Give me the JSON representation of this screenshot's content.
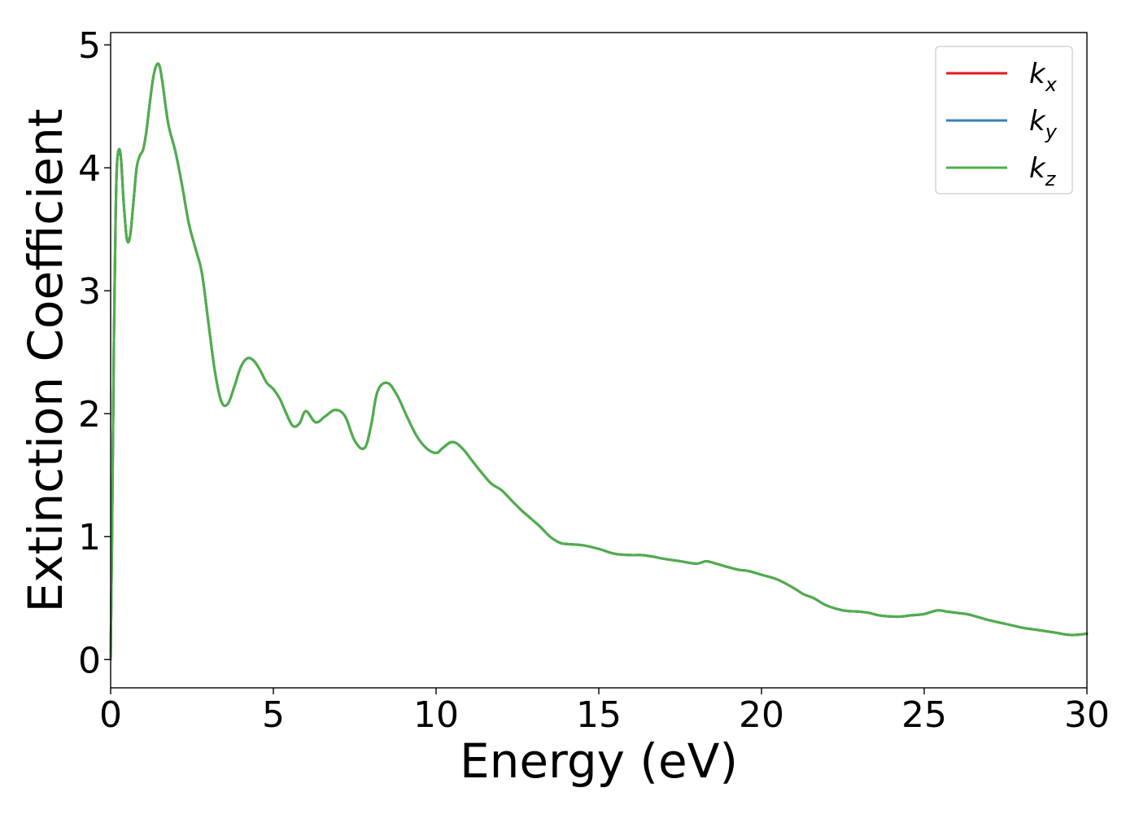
{
  "chart_data": {
    "type": "line",
    "title": "",
    "xlabel": "Energy (eV)",
    "ylabel": "Extinction Coefficient",
    "xlim": [
      0,
      30
    ],
    "ylim": [
      -0.23,
      5.1
    ],
    "xticks": [
      0,
      5,
      10,
      15,
      20,
      25,
      30
    ],
    "yticks": [
      0,
      1,
      2,
      3,
      4,
      5
    ],
    "grid": false,
    "legend_position": "top-right",
    "series": [
      {
        "name": "k",
        "subscript": "x",
        "color": "#e41a1c"
      },
      {
        "name": "k",
        "subscript": "y",
        "color": "#377eb8"
      },
      {
        "name": "k",
        "subscript": "z",
        "color": "#4daf4a"
      }
    ],
    "x": [
      0,
      0.05,
      0.1,
      0.15,
      0.2,
      0.3,
      0.4,
      0.5,
      0.6,
      0.7,
      0.8,
      0.9,
      1.0,
      1.1,
      1.2,
      1.3,
      1.4,
      1.5,
      1.6,
      1.7,
      1.8,
      2.0,
      2.2,
      2.4,
      2.6,
      2.8,
      3.0,
      3.2,
      3.4,
      3.6,
      3.8,
      4.0,
      4.2,
      4.4,
      4.6,
      4.8,
      5.0,
      5.2,
      5.4,
      5.6,
      5.8,
      6.0,
      6.3,
      6.6,
      6.9,
      7.2,
      7.5,
      7.8,
      8.0,
      8.2,
      8.5,
      8.8,
      9.1,
      9.4,
      9.7,
      10.0,
      10.2,
      10.5,
      10.8,
      11.1,
      11.4,
      11.7,
      12.0,
      12.3,
      12.6,
      12.9,
      13.2,
      13.5,
      13.8,
      14.0,
      14.5,
      15.0,
      15.5,
      16.0,
      16.3,
      16.6,
      17.0,
      17.5,
      18.0,
      18.3,
      18.6,
      19.0,
      19.3,
      19.6,
      20.0,
      20.5,
      21.0,
      21.3,
      21.6,
      22.0,
      22.5,
      23.0,
      23.3,
      23.6,
      24.0,
      24.3,
      24.6,
      25.0,
      25.4,
      25.7,
      26.0,
      26.3,
      26.6,
      27.0,
      27.5,
      28.0,
      28.5,
      29.0,
      29.5,
      30.0
    ],
    "values": [
      0.0,
      1.2,
      2.6,
      3.55,
      4.05,
      4.12,
      3.72,
      3.42,
      3.45,
      3.72,
      4.0,
      4.1,
      4.15,
      4.3,
      4.52,
      4.72,
      4.83,
      4.83,
      4.68,
      4.48,
      4.32,
      4.12,
      3.85,
      3.55,
      3.35,
      3.15,
      2.75,
      2.35,
      2.1,
      2.08,
      2.22,
      2.38,
      2.45,
      2.43,
      2.35,
      2.25,
      2.2,
      2.12,
      2.0,
      1.9,
      1.92,
      2.02,
      1.93,
      1.98,
      2.03,
      1.98,
      1.78,
      1.72,
      1.9,
      2.18,
      2.25,
      2.15,
      1.98,
      1.82,
      1.72,
      1.68,
      1.72,
      1.77,
      1.72,
      1.62,
      1.52,
      1.43,
      1.38,
      1.3,
      1.22,
      1.15,
      1.08,
      1.0,
      0.95,
      0.94,
      0.93,
      0.9,
      0.86,
      0.85,
      0.85,
      0.84,
      0.82,
      0.8,
      0.78,
      0.8,
      0.78,
      0.75,
      0.73,
      0.72,
      0.69,
      0.65,
      0.58,
      0.53,
      0.5,
      0.44,
      0.4,
      0.39,
      0.38,
      0.36,
      0.35,
      0.35,
      0.36,
      0.37,
      0.4,
      0.39,
      0.38,
      0.37,
      0.35,
      0.32,
      0.29,
      0.26,
      0.24,
      0.22,
      0.2,
      0.21
    ]
  }
}
